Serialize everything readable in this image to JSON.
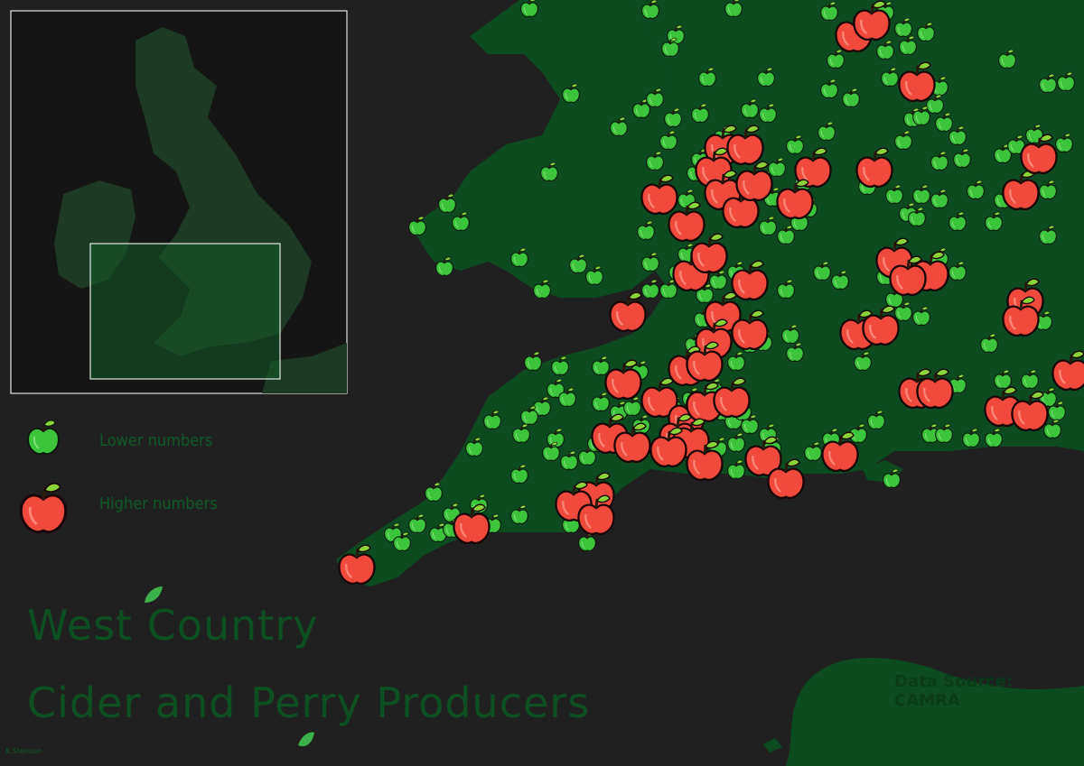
{
  "title": {
    "line1": "West Country",
    "line2": "Cider and Perry Producers"
  },
  "legend": {
    "items": [
      {
        "label": "Lower numbers",
        "icon": "green-apple-icon",
        "color": "#3cc43c"
      },
      {
        "label": "Higher numbers",
        "icon": "red-apple-icon",
        "color": "#f04a3c"
      }
    ]
  },
  "source": "Data Source: CAMRA",
  "credit": "K.Stenson",
  "colors": {
    "background": "#202020",
    "land": "#0c4a20",
    "inset_highlight": "#0f5a26",
    "lower": "#3cc43c",
    "higher": "#f04a3c"
  },
  "icons": [
    "green-apple-icon",
    "red-apple-icon",
    "leaf-icon"
  ]
}
